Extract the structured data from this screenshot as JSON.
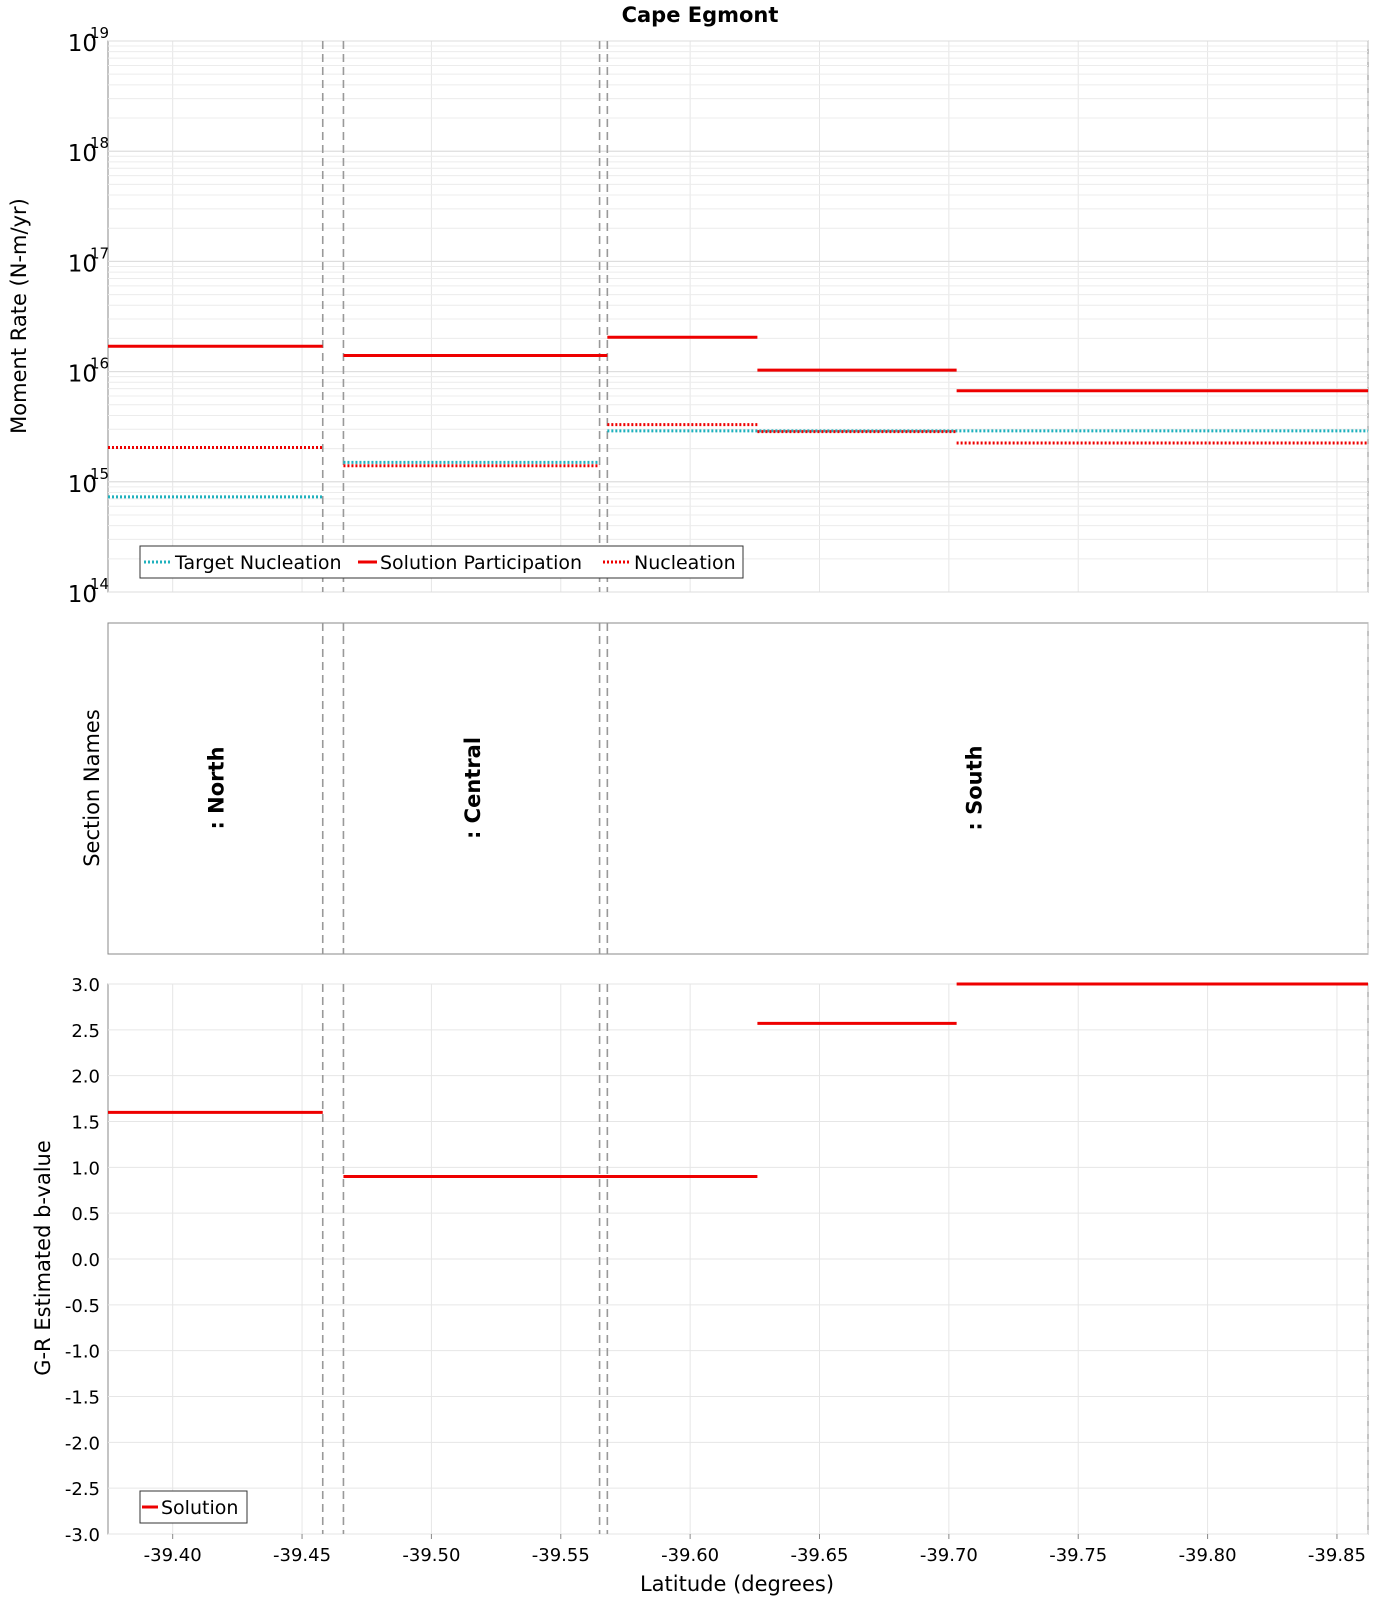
{
  "title": "Cape Egmont",
  "x_axis": {
    "label": "Latitude (degrees)",
    "range": [
      -39.375,
      -39.862
    ],
    "ticks": [
      -39.4,
      -39.45,
      -39.5,
      -39.55,
      -39.6,
      -39.65,
      -39.7,
      -39.75,
      -39.8,
      -39.85
    ],
    "tick_labels": [
      "-39.40",
      "-39.45",
      "-39.50",
      "-39.55",
      "-39.60",
      "-39.65",
      "-39.70",
      "-39.75",
      "-39.80",
      "-39.85"
    ]
  },
  "section_boundaries": [
    -39.458,
    -39.466,
    -39.565,
    -39.568
  ],
  "panels": {
    "moment_rate": {
      "ylabel": "Moment Rate (N-m/yr)",
      "yscale": "log",
      "ylim_exponents": [
        14,
        19
      ],
      "tick_exponents": [
        "14",
        "15",
        "16",
        "17",
        "18",
        "19"
      ],
      "tick_base": "10",
      "legend": {
        "placement": "bottom-left",
        "entries": [
          "Target Nucleation",
          "Solution Participation",
          "Nucleation"
        ]
      }
    },
    "section_names": {
      "ylabel": "Section Names",
      "labels": [
        {
          "text": ": North",
          "x": -39.417
        },
        {
          "text": ": Central",
          "x": -39.516
        },
        {
          "text": ": South",
          "x": -39.71
        }
      ]
    },
    "b_value": {
      "ylabel": "G-R Estimated b-value",
      "ylim": [
        -3.0,
        3.0
      ],
      "ticks": [
        "3.0",
        "2.5",
        "2.0",
        "1.5",
        "1.0",
        "0.5",
        "0.0",
        "-0.5",
        "-1.0",
        "-1.5",
        "-2.0",
        "-2.5",
        "-3.0"
      ],
      "legend": {
        "placement": "bottom-left",
        "entries": [
          "Solution"
        ]
      }
    }
  },
  "colors": {
    "solution": "#ee0000",
    "nucleation": "#ee0000",
    "target": "#1fb1bd",
    "boundary": "#999999",
    "grid": "#e6e6e6"
  },
  "chart_data": [
    {
      "type": "line",
      "title": "Cape Egmont",
      "xlabel": "Latitude (degrees)",
      "ylabel": "Moment Rate (N-m/yr)",
      "yscale": "log",
      "ylim": [
        100000000000000.0,
        1e+19
      ],
      "series": [
        {
          "name": "Target Nucleation",
          "style": "dotted",
          "segments": [
            {
              "x": [
                -39.375,
                -39.458
              ],
              "y": 730000000000000.0
            },
            {
              "x": [
                -39.466,
                -39.565
              ],
              "y": 1500000000000000.0
            },
            {
              "x": [
                -39.568,
                -39.862
              ],
              "y": 2900000000000000.0
            }
          ]
        },
        {
          "name": "Solution Participation",
          "style": "solid",
          "segments": [
            {
              "x": [
                -39.375,
                -39.458
              ],
              "y": 1.7e+16
            },
            {
              "x": [
                -39.466,
                -39.568
              ],
              "y": 1.4e+16
            },
            {
              "x": [
                -39.568,
                -39.626
              ],
              "y": 2.05e+16
            },
            {
              "x": [
                -39.626,
                -39.703
              ],
              "y": 1.03e+16
            },
            {
              "x": [
                -39.703,
                -39.862
              ],
              "y": 6700000000000000.0
            }
          ]
        },
        {
          "name": "Nucleation",
          "style": "dotted",
          "segments": [
            {
              "x": [
                -39.375,
                -39.458
              ],
              "y": 2050000000000000.0
            },
            {
              "x": [
                -39.466,
                -39.565
              ],
              "y": 1400000000000000.0
            },
            {
              "x": [
                -39.568,
                -39.626
              ],
              "y": 3300000000000000.0
            },
            {
              "x": [
                -39.626,
                -39.703
              ],
              "y": 2850000000000000.0
            },
            {
              "x": [
                -39.703,
                -39.862
              ],
              "y": 2250000000000000.0
            }
          ]
        }
      ]
    },
    {
      "type": "line",
      "xlabel": "Latitude (degrees)",
      "ylabel": "G-R Estimated b-value",
      "ylim": [
        -3.0,
        3.0
      ],
      "series": [
        {
          "name": "Solution",
          "style": "solid",
          "segments": [
            {
              "x": [
                -39.375,
                -39.458
              ],
              "y": 1.6
            },
            {
              "x": [
                -39.466,
                -39.626
              ],
              "y": 0.9
            },
            {
              "x": [
                -39.626,
                -39.703
              ],
              "y": 2.57
            },
            {
              "x": [
                -39.703,
                -39.862
              ],
              "y": 3.0
            }
          ]
        }
      ]
    }
  ]
}
